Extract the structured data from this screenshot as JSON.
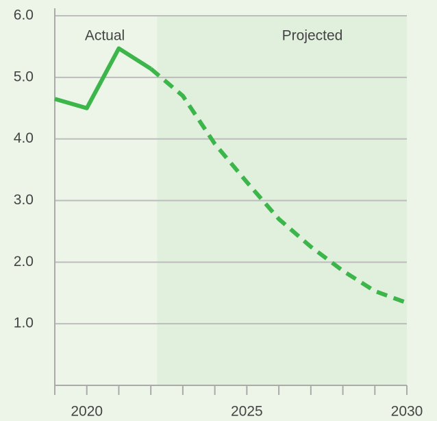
{
  "chart_data": {
    "type": "line",
    "x": [
      2019,
      2020,
      2021,
      2022,
      2023,
      2024,
      2025,
      2026,
      2027,
      2028,
      2029,
      2030
    ],
    "series": [
      {
        "name": "Actual",
        "color": "#3cb54a",
        "dashed": false,
        "values": [
          4.65,
          4.5,
          5.47,
          5.14,
          null,
          null,
          null,
          null,
          null,
          null,
          null,
          null
        ]
      },
      {
        "name": "Projected",
        "color": "#3cb54a",
        "dashed": true,
        "values": [
          null,
          null,
          null,
          5.14,
          4.7,
          3.92,
          3.3,
          2.7,
          2.25,
          1.86,
          1.53,
          1.34
        ]
      }
    ],
    "shade_from": 2022.2,
    "shade_color": "#e1efdd",
    "xlim": [
      2019,
      2030
    ],
    "xticks": [
      2020,
      2025,
      2030
    ],
    "xminor_ticks": [
      2019,
      2021,
      2022,
      2023,
      2024,
      2026,
      2027,
      2028,
      2029
    ],
    "ylim": [
      0,
      6
    ],
    "yticks": [
      {
        "value": 1,
        "label": "1.0"
      },
      {
        "value": 2,
        "label": "2.0"
      },
      {
        "value": 3,
        "label": "3.0"
      },
      {
        "value": 4,
        "label": "4.0"
      },
      {
        "value": 5,
        "label": "5.0"
      },
      {
        "value": 6,
        "label": "6.0"
      }
    ],
    "grid": true
  }
}
